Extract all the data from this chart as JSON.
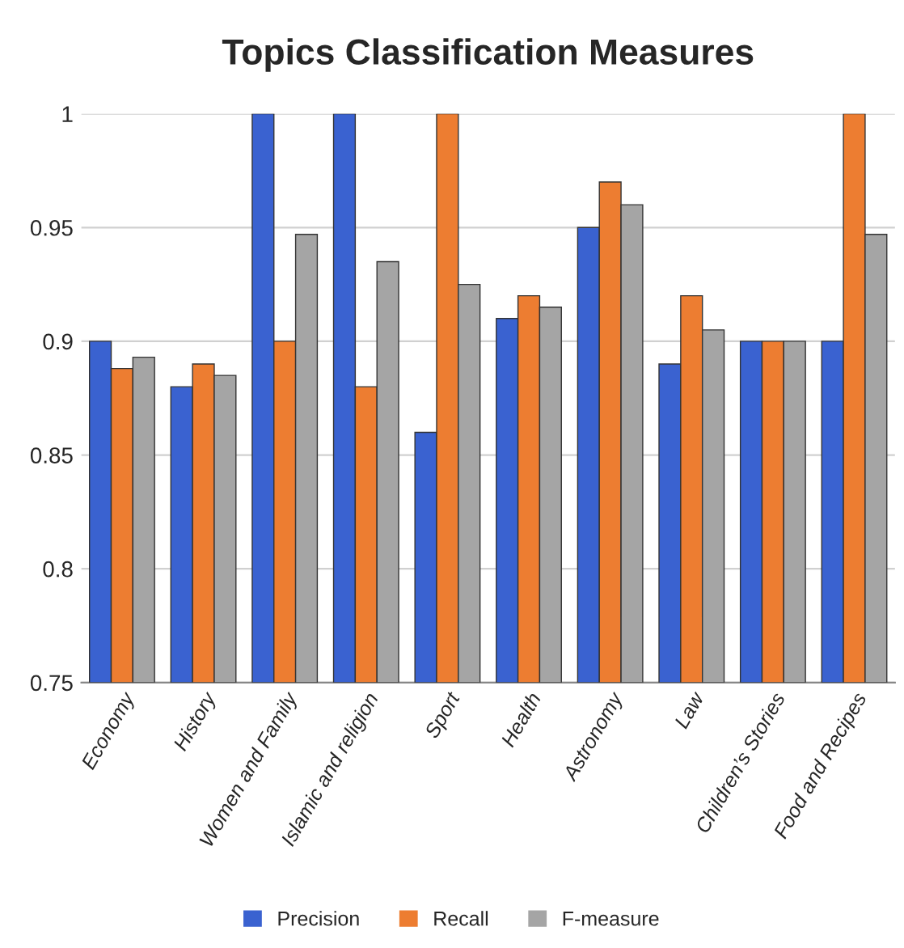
{
  "chart_data": {
    "type": "bar",
    "title": "Topics Classification Measures",
    "categories": [
      "Economy",
      "History",
      "Women and Family",
      "Islamic and religion",
      "Sport",
      "Health",
      "Astronomy",
      "Law",
      "Children’s Stories",
      "Food and Recipes"
    ],
    "series": [
      {
        "name": "Precision",
        "color": "#3a62d0",
        "values": [
          0.9,
          0.88,
          1.0,
          1.0,
          0.86,
          0.91,
          0.95,
          0.89,
          0.9,
          0.9
        ]
      },
      {
        "name": "Recall",
        "color": "#ed7d31",
        "values": [
          0.888,
          0.89,
          0.9,
          0.88,
          1.0,
          0.92,
          0.97,
          0.92,
          0.9,
          1.0
        ]
      },
      {
        "name": "F-measure",
        "color": "#a5a5a5",
        "values": [
          0.893,
          0.885,
          0.947,
          0.935,
          0.925,
          0.915,
          0.96,
          0.905,
          0.9,
          0.947
        ]
      }
    ],
    "ylim": [
      0.75,
      1.0
    ],
    "yticks": [
      0.75,
      0.8,
      0.85,
      0.9,
      0.95,
      1
    ],
    "grid": "y",
    "legend": "bottom"
  }
}
